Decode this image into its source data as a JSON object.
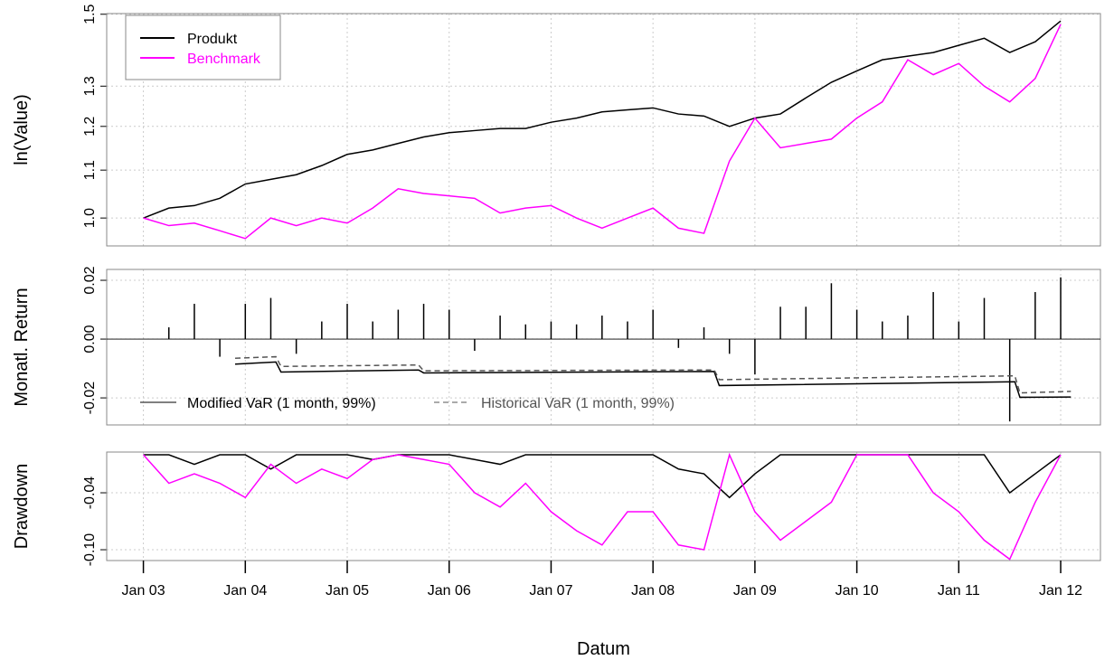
{
  "chart_data": [
    {
      "type": "line",
      "ylabel": "ln(Value)",
      "log_y": true,
      "grid": true,
      "legend": "top-left",
      "xlim": [
        2002.64,
        2012.39
      ],
      "ylim": [
        0.946,
        1.502
      ],
      "yticks": [
        {
          "value": 1.0,
          "label": "1.0"
        },
        1.1,
        1.2,
        1.3,
        1.5
      ],
      "x": [
        2003,
        2003.25,
        2003.5,
        2003.75,
        2004,
        2004.25,
        2004.5,
        2004.75,
        2005,
        2005.25,
        2005.5,
        2005.75,
        2006,
        2006.25,
        2006.5,
        2006.75,
        2007,
        2007.25,
        2007.5,
        2007.75,
        2008,
        2008.25,
        2008.5,
        2008.75,
        2009,
        2009.25,
        2009.5,
        2009.75,
        2010,
        2010.25,
        2010.5,
        2010.75,
        2011,
        2011.25,
        2011.5,
        2011.75,
        2012
      ],
      "series": [
        {
          "name": "Produkt",
          "color": "#000000",
          "values": [
            1.0,
            1.02,
            1.025,
            1.04,
            1.07,
            1.08,
            1.09,
            1.11,
            1.135,
            1.145,
            1.16,
            1.175,
            1.185,
            1.19,
            1.195,
            1.195,
            1.21,
            1.22,
            1.235,
            1.24,
            1.245,
            1.23,
            1.225,
            1.2,
            1.22,
            1.23,
            1.27,
            1.31,
            1.34,
            1.37,
            1.38,
            1.39,
            1.41,
            1.43,
            1.39,
            1.42,
            1.48
          ]
        },
        {
          "name": "Benchmark",
          "color": "#ff00ff",
          "values": [
            1.0,
            0.985,
            0.99,
            0.975,
            0.96,
            1.0,
            0.985,
            1.0,
            0.99,
            1.02,
            1.06,
            1.05,
            1.045,
            1.04,
            1.01,
            1.02,
            1.025,
            1.0,
            0.98,
            1.0,
            1.02,
            0.98,
            0.97,
            1.12,
            1.22,
            1.15,
            1.16,
            1.17,
            1.22,
            1.26,
            1.37,
            1.33,
            1.36,
            1.3,
            1.26,
            1.32,
            1.47
          ]
        }
      ]
    },
    {
      "type": "bar",
      "ylabel": "Monatl. Return",
      "grid": true,
      "color": "#000000",
      "xlim": [
        2002.64,
        2012.39
      ],
      "ylim": [
        -0.0292,
        0.0237
      ],
      "yticks": [
        -0.02,
        {
          "value": 0,
          "label": "0.00"
        },
        0.02
      ],
      "x": [
        2003.25,
        2003.5,
        2003.75,
        2004,
        2004.25,
        2004.5,
        2004.75,
        2005,
        2005.25,
        2005.5,
        2005.75,
        2006,
        2006.25,
        2006.5,
        2006.75,
        2007,
        2007.25,
        2007.5,
        2007.75,
        2008,
        2008.25,
        2008.5,
        2008.75,
        2009,
        2009.25,
        2009.5,
        2009.75,
        2010,
        2010.25,
        2010.5,
        2010.75,
        2011,
        2011.25,
        2011.5,
        2011.75,
        2012
      ],
      "values": [
        0.004,
        0.012,
        -0.006,
        0.012,
        0.014,
        -0.005,
        0.006,
        0.012,
        0.006,
        0.01,
        0.012,
        0.01,
        -0.004,
        0.008,
        0.005,
        0.006,
        0.005,
        0.008,
        0.006,
        0.01,
        -0.003,
        0.004,
        -0.005,
        -0.012,
        0.011,
        0.011,
        0.019,
        0.01,
        0.006,
        0.008,
        0.016,
        0.006,
        0.014,
        -0.028,
        0.016,
        0.021
      ],
      "series": [
        {
          "name": "Modified VaR (1 month, 99%)",
          "color": "#000000",
          "dash": false,
          "x": [
            2003.9,
            2004.3,
            2004.35,
            2005.7,
            2005.75,
            2008.6,
            2008.65,
            2011.55,
            2011.6,
            2012.1
          ],
          "values": [
            -0.0085,
            -0.0078,
            -0.0112,
            -0.0105,
            -0.0115,
            -0.011,
            -0.0158,
            -0.0145,
            -0.0198,
            -0.0197
          ]
        },
        {
          "name": "Historical VaR (1 month, 99%)",
          "color": "#555555",
          "dash": true,
          "x": [
            2003.9,
            2004.3,
            2004.35,
            2005.7,
            2005.75,
            2008.6,
            2008.65,
            2011.55,
            2011.6,
            2012.1
          ],
          "values": [
            -0.0065,
            -0.006,
            -0.0093,
            -0.0088,
            -0.0108,
            -0.0105,
            -0.0138,
            -0.0125,
            -0.0183,
            -0.0178
          ]
        }
      ]
    },
    {
      "type": "line",
      "ylabel": "Drawdown",
      "xlabel": "Datum",
      "grid": true,
      "xlim": [
        2002.64,
        2012.39
      ],
      "ylim": [
        -0.1114,
        0.0029
      ],
      "yticks": [
        -0.04,
        {
          "value": -0.1,
          "label": "-0.10"
        }
      ],
      "xticks": [
        {
          "value": 2003,
          "label": "Jan 03"
        },
        {
          "value": 2004,
          "label": "Jan 04"
        },
        {
          "value": 2005,
          "label": "Jan 05"
        },
        {
          "value": 2006,
          "label": "Jan 06"
        },
        {
          "value": 2007,
          "label": "Jan 07"
        },
        {
          "value": 2008,
          "label": "Jan 08"
        },
        {
          "value": 2009,
          "label": "Jan 09"
        },
        {
          "value": 2010,
          "label": "Jan 10"
        },
        {
          "value": 2011,
          "label": "Jan 11"
        },
        {
          "value": 2012,
          "label": "Jan 12"
        }
      ],
      "x": [
        2003,
        2003.25,
        2003.5,
        2003.75,
        2004,
        2004.25,
        2004.5,
        2004.75,
        2005,
        2005.25,
        2005.5,
        2005.75,
        2006,
        2006.25,
        2006.5,
        2006.75,
        2007,
        2007.25,
        2007.5,
        2007.75,
        2008,
        2008.25,
        2008.5,
        2008.75,
        2009,
        2009.25,
        2009.5,
        2009.75,
        2010,
        2010.25,
        2010.5,
        2010.75,
        2011,
        2011.25,
        2011.5,
        2011.75,
        2012
      ],
      "series": [
        {
          "name": "Produkt",
          "color": "#000000",
          "values": [
            0,
            0,
            -0.01,
            0,
            0,
            -0.015,
            0,
            0,
            0,
            -0.005,
            0,
            0,
            0,
            -0.005,
            -0.01,
            0,
            0,
            0,
            0,
            0,
            0,
            -0.015,
            -0.02,
            -0.045,
            -0.02,
            0,
            0,
            0,
            0,
            0,
            0,
            0,
            0,
            0,
            -0.04,
            -0.02,
            0
          ]
        },
        {
          "name": "Benchmark",
          "color": "#ff00ff",
          "values": [
            0,
            -0.03,
            -0.02,
            -0.03,
            -0.045,
            -0.01,
            -0.03,
            -0.015,
            -0.025,
            -0.005,
            0,
            -0.005,
            -0.01,
            -0.04,
            -0.055,
            -0.03,
            -0.06,
            -0.08,
            -0.095,
            -0.06,
            -0.06,
            -0.095,
            -0.1,
            0,
            -0.06,
            -0.09,
            -0.07,
            -0.05,
            0,
            0,
            0,
            -0.04,
            -0.06,
            -0.09,
            -0.11,
            -0.05,
            0
          ]
        }
      ]
    }
  ]
}
